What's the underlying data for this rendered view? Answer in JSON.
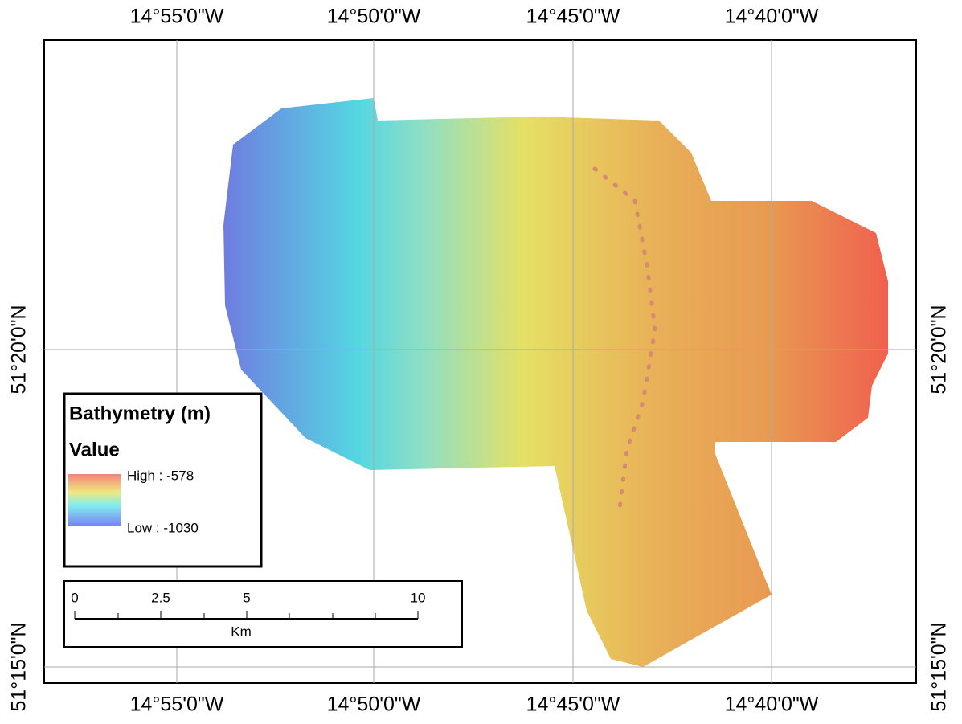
{
  "graticule": {
    "longitudes": [
      "14°55'0\"W",
      "14°50'0\"W",
      "14°45'0\"W",
      "14°40'0\"W"
    ],
    "latitudes": [
      "51°20'0\"N",
      "51°15'0\"N"
    ]
  },
  "legend": {
    "title": "Bathymetry (m)",
    "field": "Value",
    "high_label": "High : -578",
    "low_label": "Low : -1030"
  },
  "scale_bar": {
    "ticks": [
      "0",
      "2.5",
      "5",
      "10"
    ],
    "unit": "Km"
  }
}
